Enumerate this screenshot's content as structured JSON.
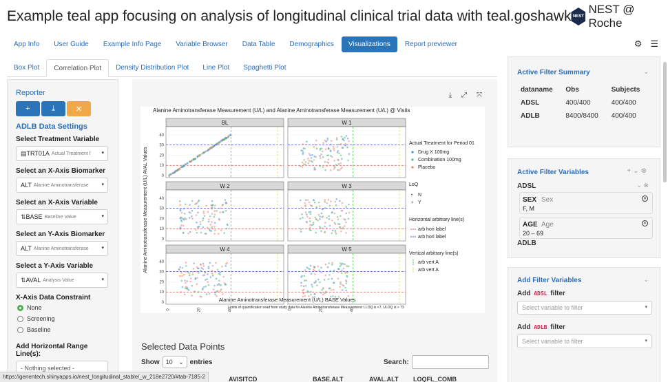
{
  "header": {
    "title": "Example teal app focusing on analysis of longitudinal clinical trial data with teal.goshawk",
    "brand": "NEST @ Roche",
    "logo_text": "NEST"
  },
  "nav": {
    "tabs": [
      "App Info",
      "User Guide",
      "Example Info Page",
      "Variable Browser",
      "Data Table",
      "Demographics",
      "Visualizations",
      "Report previewer"
    ],
    "active": "Visualizations"
  },
  "subtabs": {
    "tabs": [
      "Box Plot",
      "Correlation Plot",
      "Density Distribution Plot",
      "Line Plot",
      "Spaghetti Plot"
    ],
    "active": "Correlation Plot"
  },
  "left": {
    "reporter": "Reporter",
    "section": "ADLB Data Settings",
    "fields": [
      {
        "label": "Select Treatment Variable",
        "value": "TRT01A",
        "sub": "Actual Treatment f",
        "icon": "chart-icon"
      },
      {
        "label": "Select an X-Axis Biomarker",
        "value": "ALT",
        "sub": "Alanine Aminotransferase",
        "icon": ""
      },
      {
        "label": "Select an X-Axis Variable",
        "value": "BASE",
        "sub": "Baseline Value",
        "icon": "sort-icon"
      },
      {
        "label": "Select an Y-Axis Biomarker",
        "value": "ALT",
        "sub": "Alanine Aminotransferase",
        "icon": ""
      },
      {
        "label": "Select a Y-Axis Variable",
        "value": "AVAL",
        "sub": "Analysis Value",
        "icon": "sort-icon"
      }
    ],
    "constraint_label": "X-Axis Data Constraint",
    "constraint_options": [
      "None",
      "Screening",
      "Baseline"
    ],
    "constraint_selected": "None",
    "hline_label": "Add Horizontal Range Line(s):",
    "hline_placeholder": "- Nothing selected -"
  },
  "chart_data": {
    "type": "scatter",
    "title": "Alanine Aminotransferase Measurement (U/L) and Alanine Aminotransferase Measurement (U/L) @ Visits",
    "xlabel": "Alanine Aminotransferase Measurement (U/L) BASE Values",
    "ylabel": "Alanine Aminotransferase Measurement (U/L) AVAL Values",
    "caption": "Limits of quantification read from study data for Alanine Aminotransferase Measurement: LLOQ is <7, ULOQ is > 73",
    "panels": [
      "BL",
      "W 1",
      "W 2",
      "W 3",
      "W 4",
      "W 5"
    ],
    "xticks": [
      0,
      20,
      40
    ],
    "yticks": [
      0,
      10,
      20,
      30,
      40
    ],
    "xlim": [
      -2,
      74
    ],
    "ylim": [
      -2,
      48
    ],
    "hlines": [
      {
        "y": 10,
        "color": "#e05050",
        "name": "arb hori label"
      },
      {
        "y": 30,
        "color": "#4050d0",
        "name": "arb hori label"
      }
    ],
    "vlines": [
      {
        "x": 40,
        "color": "#40c040",
        "name": "arb vert A"
      },
      {
        "x": 70,
        "color": "#e0e040",
        "name": "arb vert A"
      }
    ],
    "legend_position": "right",
    "legend": {
      "treatment_title": "Actual Treatment for Period 01",
      "series": [
        {
          "name": "Drug X 100mg",
          "color": "#4a8ee0"
        },
        {
          "name": "Combination 100mg",
          "color": "#4cb87a"
        },
        {
          "name": "Placebo",
          "color": "#f08070"
        }
      ],
      "loq_title": "LoQ",
      "loq": [
        "N",
        "Y"
      ],
      "h_title": "Horizontal arbitrary line(s)",
      "v_title": "Vertical arbitrary line(s)"
    }
  },
  "table": {
    "title": "Selected Data Points",
    "show": "Show",
    "entries_value": "10",
    "entries": "entries",
    "search": "Search:",
    "columns": [
      "AVISITCD",
      "BASE.ALT",
      "AVAL.ALT",
      "LOQFL_COMB"
    ]
  },
  "right": {
    "summary_title": "Active Filter Summary",
    "summary_headers": [
      "dataname",
      "Obs",
      "Subjects"
    ],
    "summary_rows": [
      [
        "ADSL",
        "400/400",
        "400/400"
      ],
      [
        "ADLB",
        "8400/8400",
        "400/400"
      ]
    ],
    "vars_title": "Active Filter Variables",
    "adsl": "ADSL",
    "filters": [
      {
        "name": "SEX",
        "label": "Sex",
        "value": "F, M"
      },
      {
        "name": "AGE",
        "label": "Age",
        "value": "20 – 69"
      }
    ],
    "adlb": "ADLB",
    "add_title": "Add Filter Variables",
    "add_adsl": {
      "pre": "Add",
      "code": "ADSL",
      "post": "filter"
    },
    "add_adlb": {
      "pre": "Add",
      "code": "ADLB",
      "post": "filter"
    },
    "placeholder": "Select variable to filter"
  },
  "status_url": "https://genentech.shinyapps.io/nest_longitudinal_stable/_w_218e2720/#tab-7185-2"
}
